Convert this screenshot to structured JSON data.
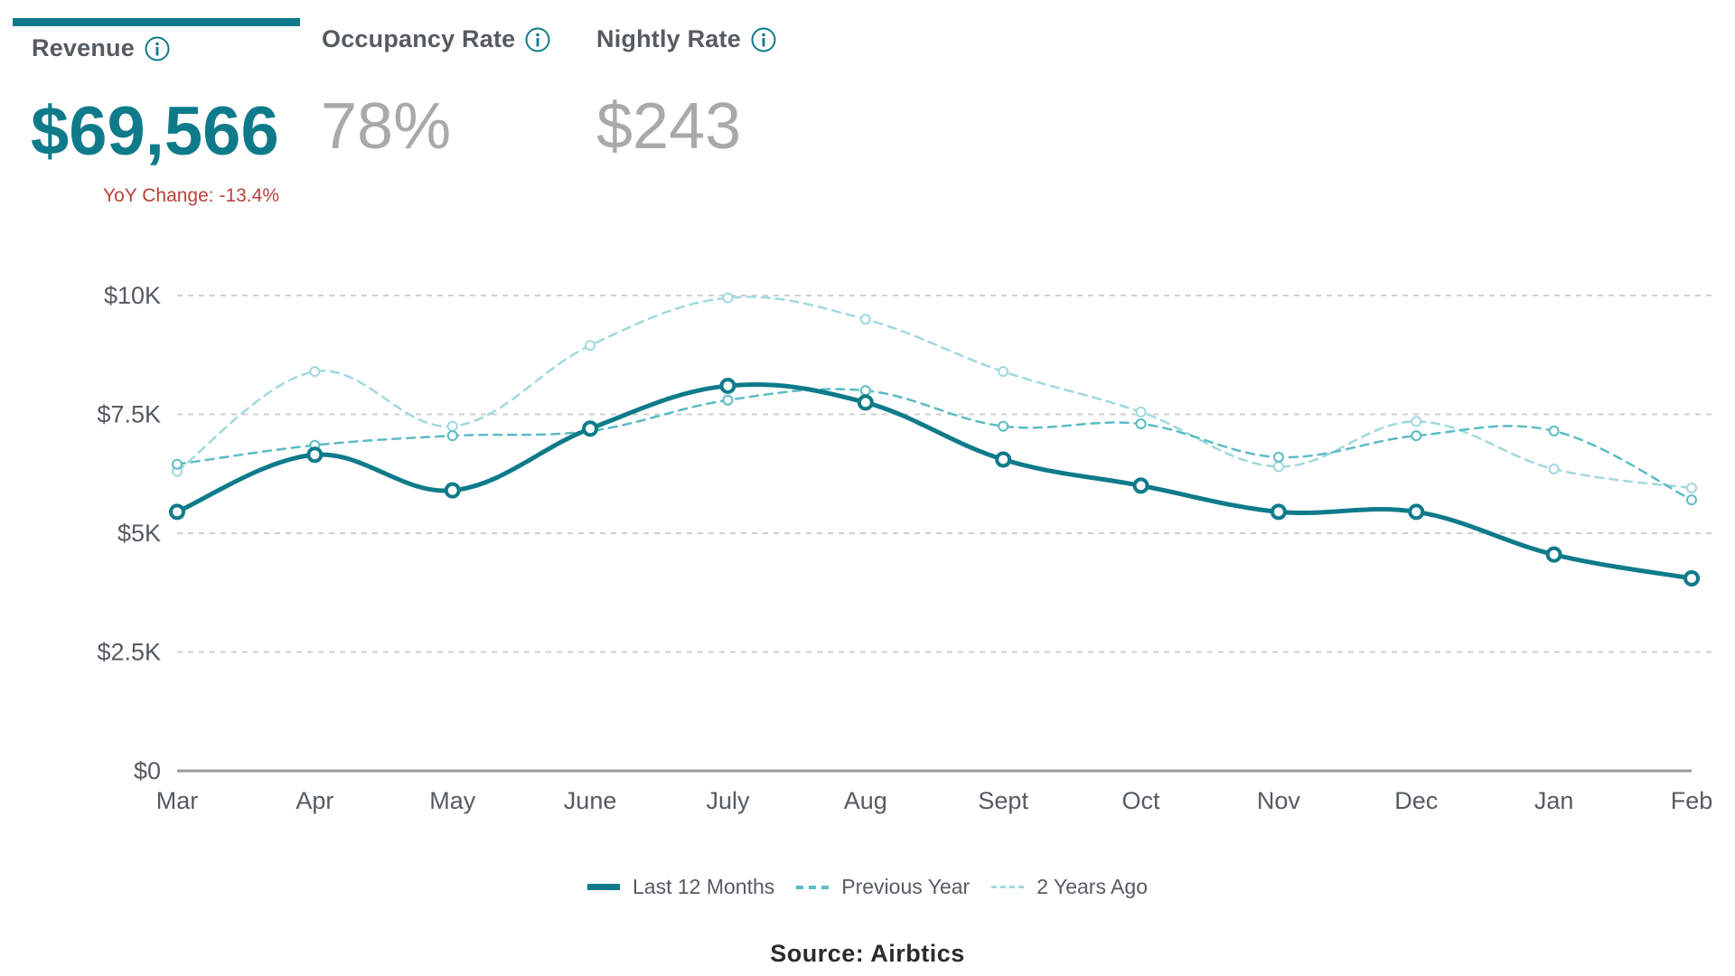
{
  "tabs": [
    {
      "label": "Revenue",
      "value": "$69,566",
      "active": true
    },
    {
      "label": "Occupancy Rate",
      "value": "78%",
      "active": false
    },
    {
      "label": "Nightly Rate",
      "value": "$243",
      "active": false
    }
  ],
  "yoy_change": "YoY Change: -13.4%",
  "colors": {
    "accent": "#0f7b8a",
    "inactive": "#a9a9a9",
    "yoy": "#b9413a",
    "previous_year": "#5bbcc4",
    "two_years_ago": "#9fd9de",
    "grid": "#cfcfcf"
  },
  "icons": {
    "info": "info-circle-icon"
  },
  "chart_data": {
    "type": "line",
    "categories": [
      "Mar",
      "Apr",
      "May",
      "June",
      "July",
      "Aug",
      "Sept",
      "Oct",
      "Nov",
      "Dec",
      "Jan",
      "Feb"
    ],
    "y_ticks": [
      0,
      2500,
      5000,
      7500,
      10000
    ],
    "y_tick_labels": [
      "$0",
      "$2.5K",
      "$5K",
      "$7.5K",
      "$10K"
    ],
    "ylim": [
      0,
      10000
    ],
    "grid": true,
    "legend_position": "bottom-center",
    "series": [
      {
        "name": "Last 12 Months",
        "style": "solid",
        "values": [
          5450,
          6650,
          5900,
          7200,
          8100,
          7750,
          6550,
          6000,
          5450,
          5450,
          4550,
          4050
        ]
      },
      {
        "name": "Previous Year",
        "style": "dashed",
        "values": [
          6450,
          6850,
          7050,
          7150,
          7800,
          8000,
          7250,
          7300,
          6600,
          7050,
          7150,
          5700
        ]
      },
      {
        "name": "2 Years Ago",
        "style": "dashed-light",
        "values": [
          6300,
          8400,
          7250,
          8950,
          9950,
          9500,
          8400,
          7550,
          6400,
          7350,
          6350,
          5950
        ]
      }
    ]
  },
  "source": "Source: Airbtics"
}
